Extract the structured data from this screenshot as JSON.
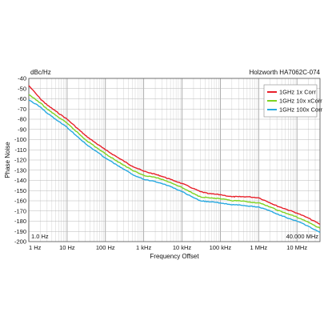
{
  "chart_data": {
    "type": "line",
    "title": "Holzworth HA7062C-074",
    "unit_label": "dBc/Hz",
    "xlabel": "Frequency Offset",
    "ylabel": "Phase Noise",
    "x_scale": "log",
    "xlim": [
      1,
      40000000
    ],
    "ylim": [
      -200,
      -40
    ],
    "x_ticks": [
      {
        "value": 1,
        "label": "1 Hz"
      },
      {
        "value": 10,
        "label": "10 Hz"
      },
      {
        "value": 100,
        "label": "100 Hz"
      },
      {
        "value": 1000,
        "label": "1 kHz"
      },
      {
        "value": 10000,
        "label": "10 kHz"
      },
      {
        "value": 100000,
        "label": "100 kHz"
      },
      {
        "value": 1000000,
        "label": "1 MHz"
      },
      {
        "value": 10000000,
        "label": "10 MHz"
      }
    ],
    "y_ticks": [
      -40,
      -50,
      -60,
      -70,
      -80,
      -90,
      -100,
      -110,
      -120,
      -130,
      -140,
      -150,
      -160,
      -170,
      -180,
      -190,
      -200
    ],
    "start_marker": "1.0 Hz",
    "stop_marker": "40.000 MHz",
    "grid": true,
    "legend_position": "top-right",
    "series": [
      {
        "name": "1GHz 1x Corr",
        "color": "#e8202a",
        "x": [
          1,
          2,
          3,
          5,
          10,
          20,
          30,
          50,
          100,
          200,
          300,
          500,
          1000,
          2000,
          3000,
          5000,
          10000,
          20000,
          30000,
          50000,
          100000,
          200000,
          300000,
          500000,
          1000000,
          2000000,
          3000000,
          5000000,
          10000000,
          20000000,
          40000000
        ],
        "values": [
          -47,
          -60,
          -66,
          -72,
          -80,
          -90,
          -96,
          -102,
          -110,
          -117,
          -121,
          -126,
          -131,
          -134,
          -136,
          -139,
          -143,
          -148,
          -151,
          -153,
          -154,
          -156,
          -156,
          -156,
          -157,
          -162,
          -165,
          -168,
          -172,
          -177,
          -183
        ]
      },
      {
        "name": "1GHz 10x xCorr",
        "color": "#7ed321",
        "x": [
          1,
          2,
          3,
          5,
          10,
          20,
          30,
          50,
          100,
          200,
          300,
          500,
          1000,
          2000,
          3000,
          5000,
          10000,
          20000,
          30000,
          50000,
          100000,
          200000,
          300000,
          500000,
          1000000,
          2000000,
          3000000,
          5000000,
          10000000,
          20000000,
          40000000
        ],
        "values": [
          -56,
          -64,
          -70,
          -76,
          -84,
          -94,
          -100,
          -106,
          -114,
          -121,
          -125,
          -130,
          -135,
          -137,
          -139,
          -142,
          -147,
          -153,
          -156,
          -157,
          -158,
          -160,
          -160,
          -161,
          -162,
          -166,
          -169,
          -172,
          -176,
          -181,
          -187
        ]
      },
      {
        "name": "1GHz 100x Corr",
        "color": "#27a9e1",
        "x": [
          1,
          2,
          3,
          5,
          10,
          20,
          30,
          50,
          100,
          200,
          300,
          500,
          1000,
          2000,
          3000,
          5000,
          10000,
          20000,
          30000,
          50000,
          100000,
          200000,
          300000,
          500000,
          1000000,
          2000000,
          3000000,
          5000000,
          10000000,
          20000000,
          40000000
        ],
        "values": [
          -61,
          -68,
          -74,
          -80,
          -88,
          -98,
          -104,
          -110,
          -118,
          -125,
          -129,
          -134,
          -139,
          -141,
          -143,
          -146,
          -151,
          -157,
          -160,
          -161,
          -162,
          -164,
          -164,
          -165,
          -166,
          -170,
          -173,
          -176,
          -180,
          -185,
          -191
        ]
      }
    ]
  }
}
